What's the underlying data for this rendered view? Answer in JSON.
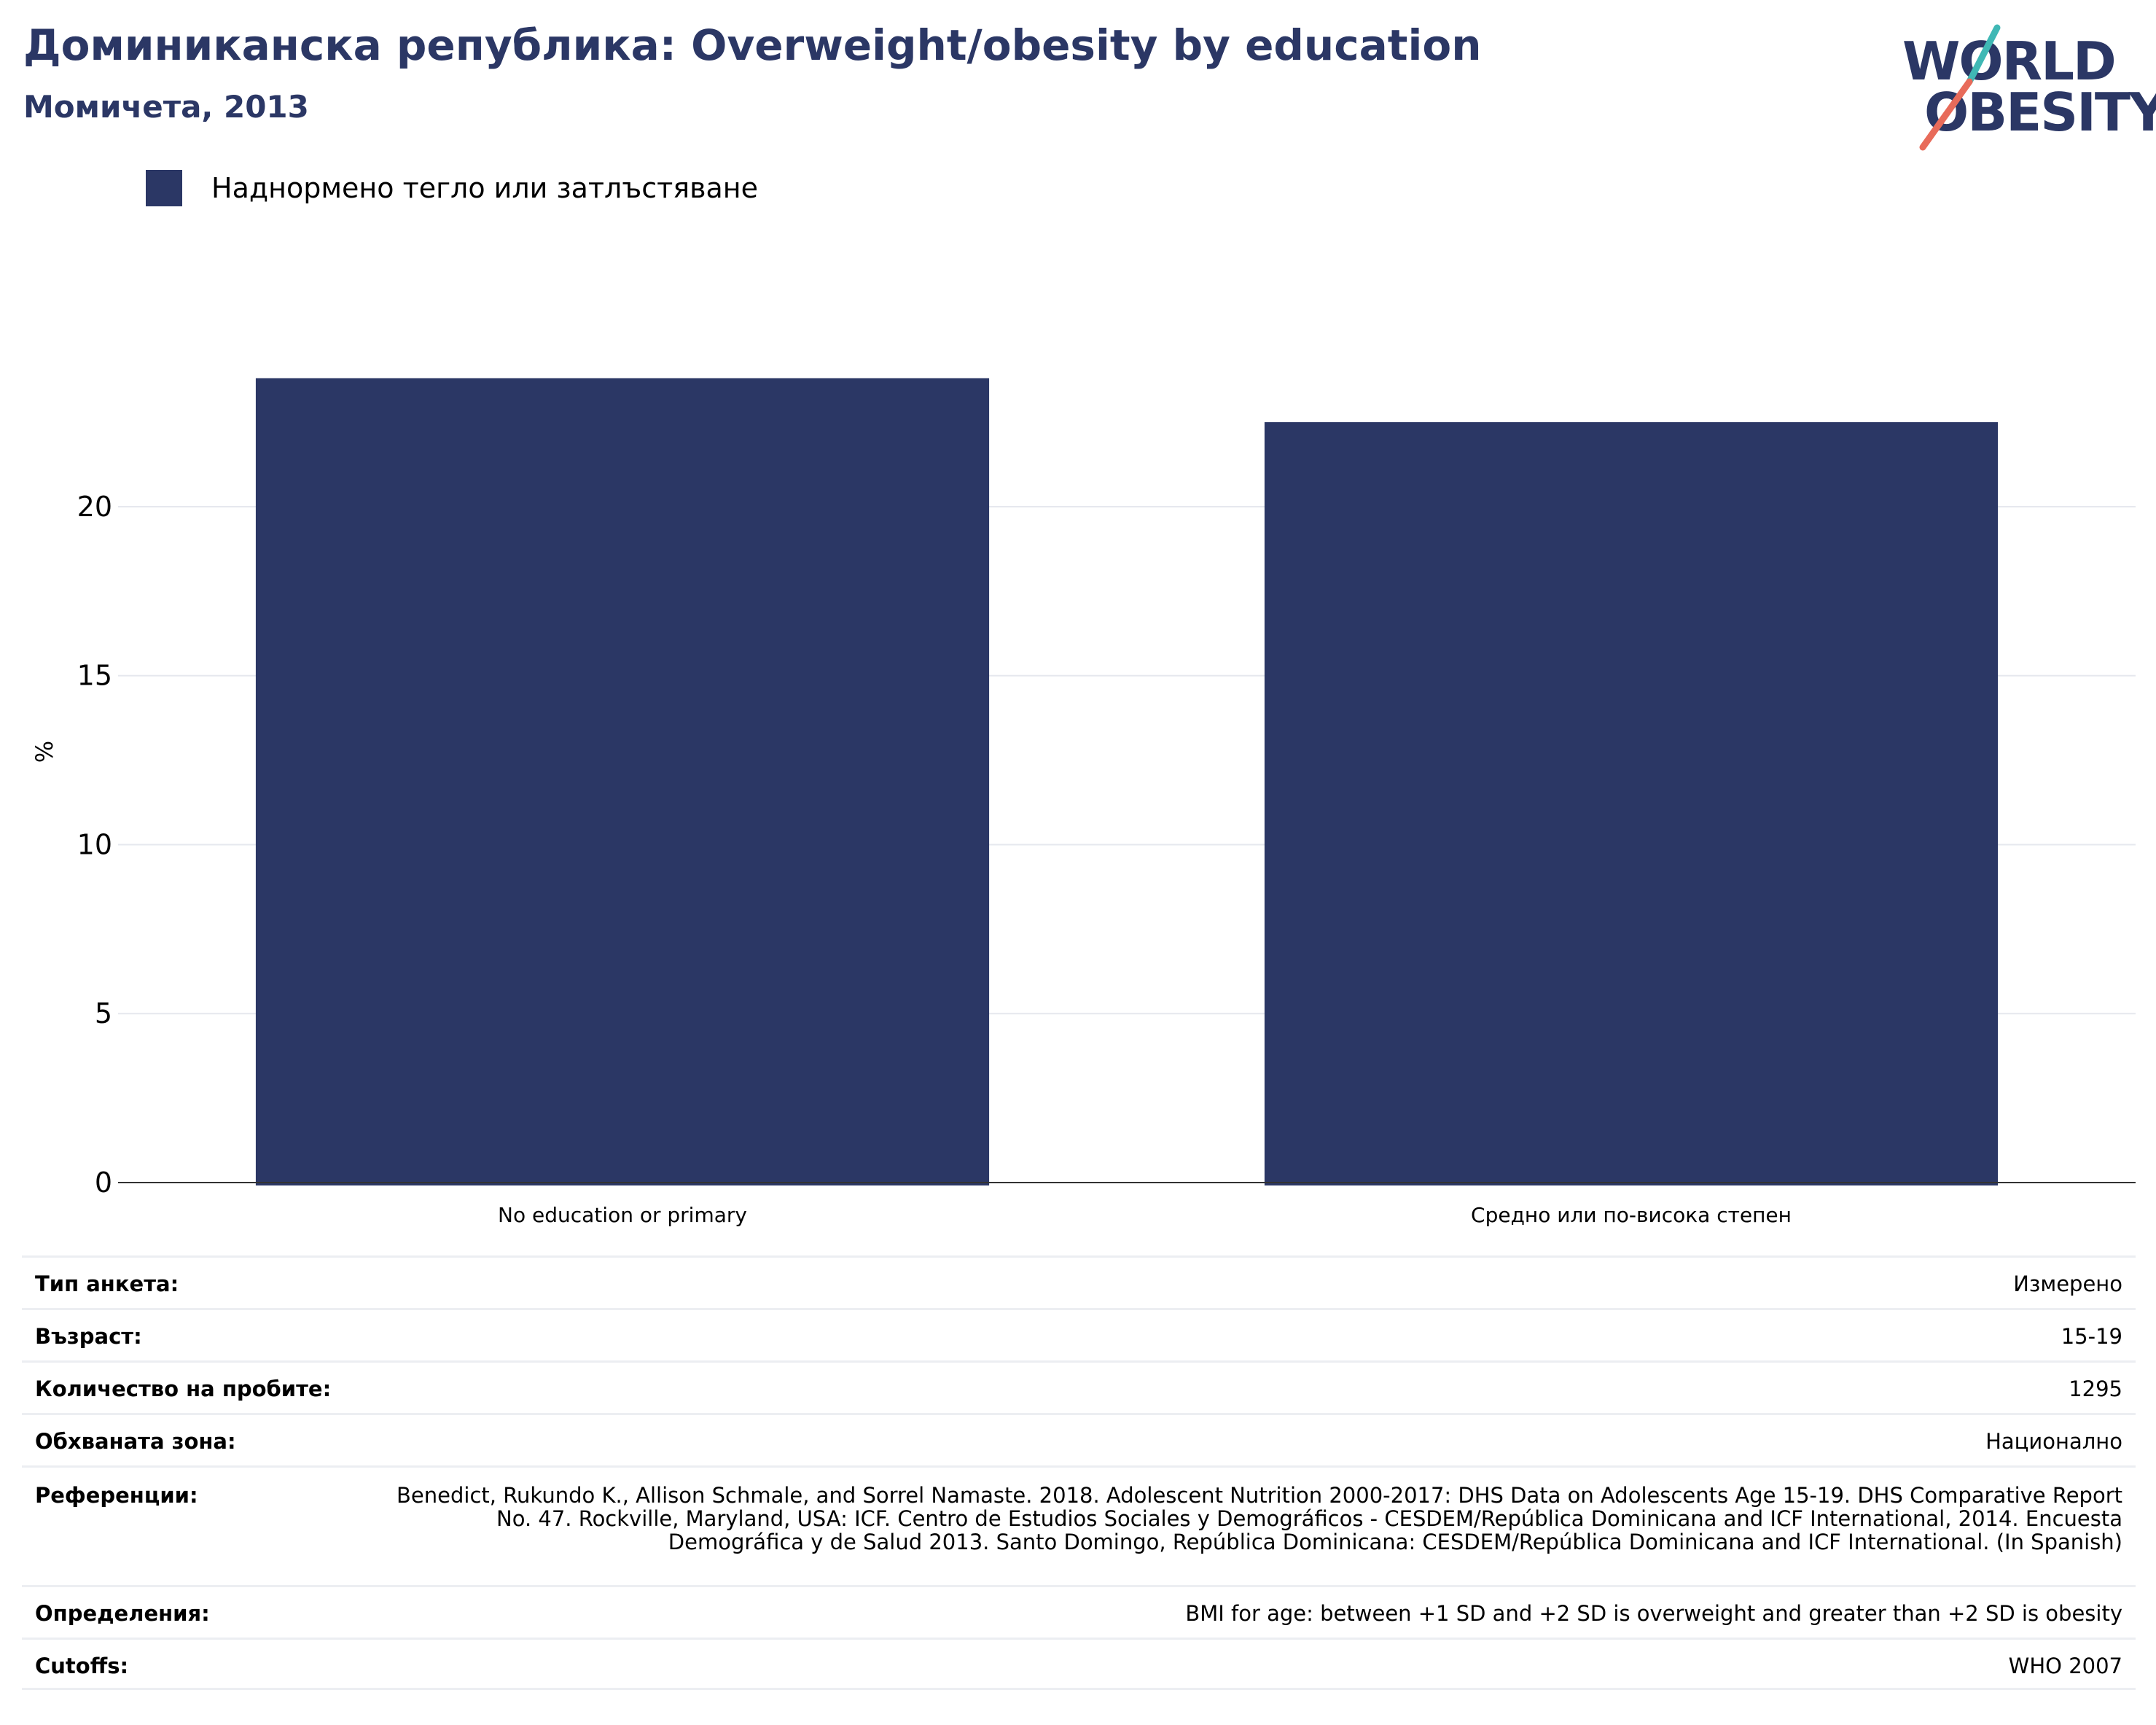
{
  "header": {
    "title": "Доминиканска република: Overweight/obesity by education",
    "subtitle": "Момичета, 2013"
  },
  "logo": {
    "line1": "WORLD",
    "line2": "OBESITY"
  },
  "legend": {
    "label": "Наднормено тегло или затлъстяване",
    "color": "#2b3765"
  },
  "chart_data": {
    "type": "bar",
    "categories": [
      "No education or primary",
      "Средно или по-висока степен"
    ],
    "series": [
      {
        "name": "Наднормено тегло или затлъстяване",
        "values": [
          23.8,
          22.5
        ],
        "color": "#2b3765"
      }
    ],
    "ylabel": "%",
    "yticks": [
      "0",
      "5",
      "10",
      "15",
      "20"
    ],
    "ylim": [
      0,
      25.5
    ],
    "grid": true
  },
  "info": [
    {
      "key": "Тип анкета:",
      "value": "Измерено"
    },
    {
      "key": "Възраст:",
      "value": "15-19"
    },
    {
      "key": "Количество на пробите:",
      "value": "1295"
    },
    {
      "key": "Обхваната зона:",
      "value": "Национално"
    },
    {
      "key": "Референции:",
      "value": "Benedict, Rukundo K., Allison Schmale, and Sorrel Namaste. 2018. Adolescent Nutrition 2000-2017: DHS Data on Adolescents Age 15-19. DHS Comparative Report No. 47. Rockville, Maryland, USA: ICF. Centro de Estudios Sociales y Demográficos - CESDEM/República Dominicana and ICF International, 2014. Encuesta Demográfica y de Salud 2013. Santo Domingo, República Dominicana: CESDEM/República Dominicana and ICF International. (In Spanish)"
    },
    {
      "key": "Определения:",
      "value": "BMI for age: between +1 SD and +2 SD is overweight and greater than +2 SD is obesity"
    },
    {
      "key": "Cutoffs:",
      "value": "WHO 2007"
    }
  ],
  "colors": {
    "accent": "#2b3765",
    "logo_teal": "#3fb8b5",
    "logo_coral": "#e86b5a"
  }
}
